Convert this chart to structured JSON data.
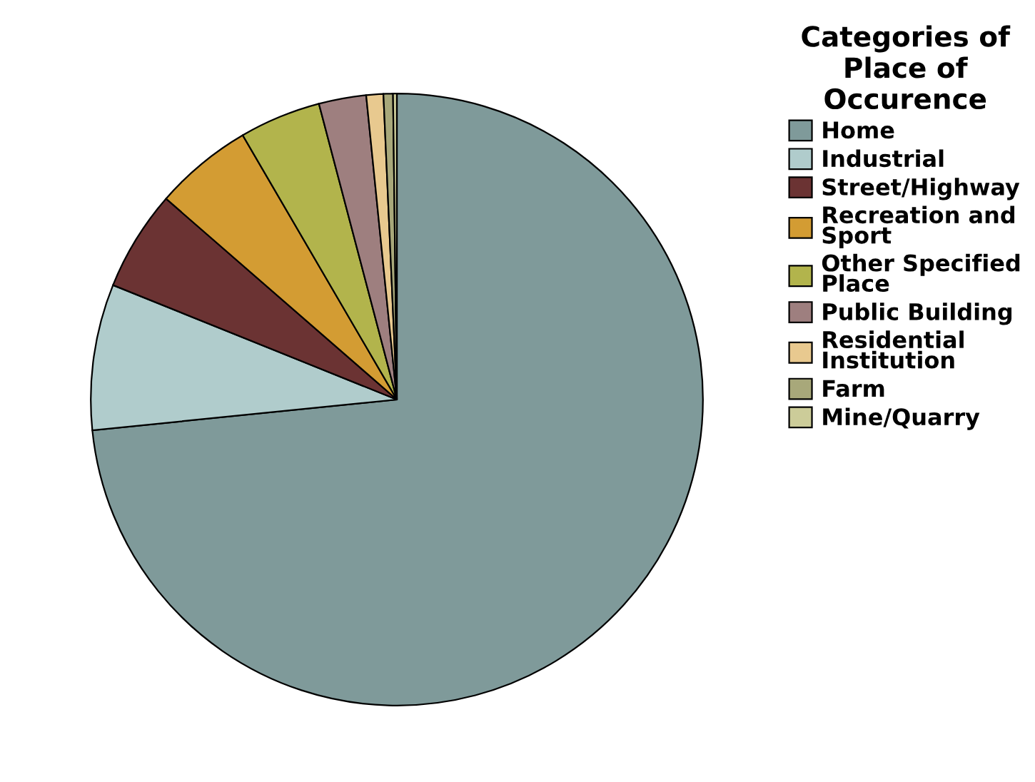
{
  "chart_data": {
    "type": "pie",
    "legend_title": "Categories of Place of Occurence",
    "categories": [
      "Home",
      "Industrial",
      "Street/Highway",
      "Recreation and Sport",
      "Other Specified Place",
      "Public Building",
      "Residential Institution",
      "Farm",
      "Mine/Quarry"
    ],
    "values": [
      73.4,
      7.7,
      5.3,
      5.2,
      4.3,
      2.5,
      0.9,
      0.5,
      0.2
    ],
    "colors": [
      "#7f9a9a",
      "#b0cccc",
      "#6b3333",
      "#d39c33",
      "#b2b44c",
      "#9e7f7f",
      "#e8c98f",
      "#a8a87a",
      "#cccc99"
    ],
    "legend": "right"
  }
}
